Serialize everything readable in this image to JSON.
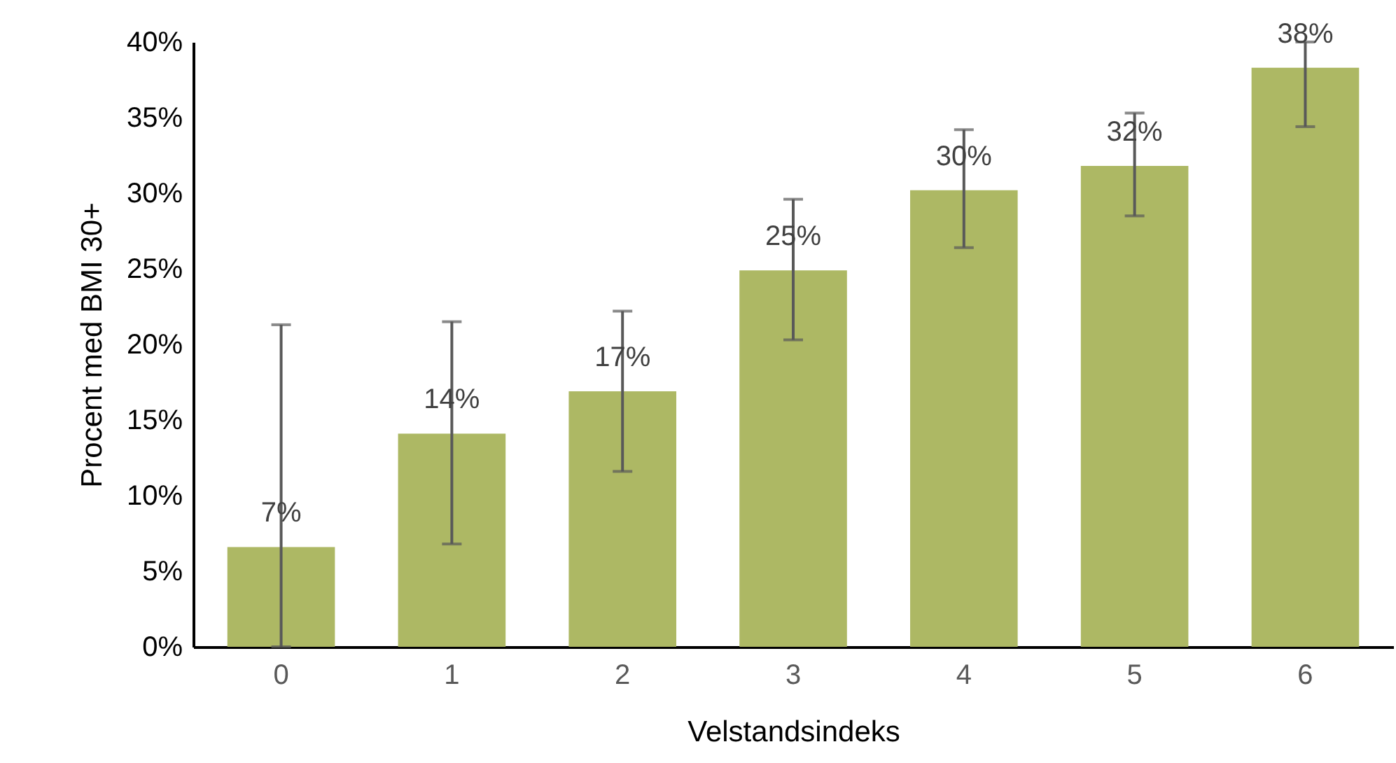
{
  "chart_data": {
    "type": "bar",
    "xlabel": "Velstandsindeks",
    "ylabel": "Procent med BMI 30+",
    "categories": [
      "0",
      "1",
      "2",
      "3",
      "4",
      "5",
      "6"
    ],
    "values": [
      6.6,
      14.1,
      16.9,
      24.9,
      30.2,
      31.8,
      38.3
    ],
    "color": "#adb864",
    "errors": [
      [
        0,
        21.3
      ],
      [
        6.8,
        21.5
      ],
      [
        11.6,
        22.2
      ],
      [
        20.3,
        29.6
      ],
      [
        26.4,
        34.2
      ],
      [
        28.5,
        35.3
      ],
      [
        34.4,
        40
      ]
    ],
    "value_labels": [
      "7%",
      "14%",
      "17%",
      "25%",
      "30%",
      "32%",
      "38%"
    ],
    "ylim": [
      0,
      40
    ],
    "yticks": [
      {
        "value": 0,
        "label": "0%"
      },
      {
        "value": 5,
        "label": "5%"
      },
      {
        "value": 10,
        "label": "10%"
      },
      {
        "value": 15,
        "label": "15%"
      },
      {
        "value": 20,
        "label": "20%"
      },
      {
        "value": 25,
        "label": "25%"
      },
      {
        "value": 30,
        "label": "30%"
      },
      {
        "value": 35,
        "label": "35%"
      },
      {
        "value": 40,
        "label": "40%"
      }
    ]
  }
}
